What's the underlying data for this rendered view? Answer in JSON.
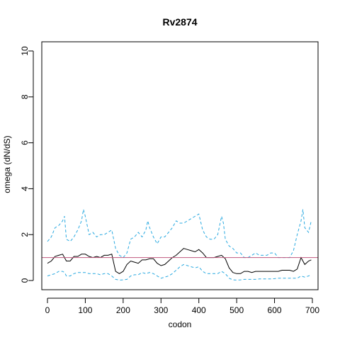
{
  "chart_data": {
    "type": "line",
    "title": "Rv2874",
    "xlabel": "codon",
    "ylabel": "omega (dN/dS)",
    "xlim": [
      -15,
      715
    ],
    "ylim": [
      -0.4,
      10.4
    ],
    "xticks": [
      0,
      100,
      200,
      300,
      400,
      500,
      600,
      700
    ],
    "yticks": [
      0,
      2,
      4,
      6,
      8,
      10
    ],
    "grid": false,
    "legend": "none",
    "reference_line": {
      "y": 1,
      "color": "#c0587e"
    },
    "series": [
      {
        "role": "upper",
        "color": "#29a9e0",
        "dash": "dashed",
        "x": [
          0,
          10,
          20,
          30,
          40,
          45,
          50,
          60,
          70,
          80,
          90,
          95,
          100,
          110,
          120,
          130,
          140,
          150,
          160,
          170,
          180,
          190,
          200,
          210,
          220,
          230,
          240,
          250,
          260,
          265,
          270,
          280,
          290,
          300,
          310,
          320,
          330,
          340,
          350,
          360,
          370,
          380,
          390,
          400,
          410,
          420,
          430,
          440,
          450,
          460,
          465,
          470,
          480,
          490,
          500,
          510,
          520,
          530,
          540,
          550,
          560,
          570,
          580,
          590,
          600,
          610,
          620,
          630,
          640,
          650,
          660,
          670,
          675,
          680,
          690,
          697
        ],
        "values": [
          1.7,
          1.9,
          2.3,
          2.4,
          2.6,
          2.8,
          1.8,
          1.7,
          1.9,
          2.2,
          2.6,
          3.1,
          2.8,
          2.0,
          2.1,
          1.9,
          2.0,
          2.0,
          2.1,
          2.2,
          1.4,
          1.1,
          1.0,
          1.2,
          1.8,
          1.9,
          2.1,
          1.9,
          2.2,
          2.6,
          2.3,
          1.9,
          1.6,
          1.9,
          1.9,
          2.1,
          2.3,
          2.6,
          2.5,
          2.5,
          2.6,
          2.7,
          2.8,
          2.9,
          2.2,
          1.9,
          1.8,
          1.8,
          2.0,
          2.8,
          2.5,
          1.8,
          1.5,
          1.4,
          1.2,
          1.2,
          1.0,
          1.0,
          1.1,
          1.2,
          1.1,
          1.1,
          1.1,
          1.2,
          1.2,
          1.0,
          1.0,
          1.0,
          1.0,
          1.3,
          2.0,
          2.6,
          3.1,
          2.3,
          2.1,
          2.6
        ]
      },
      {
        "role": "estimate",
        "color": "#000000",
        "dash": "solid",
        "x": [
          0,
          10,
          20,
          30,
          40,
          50,
          60,
          70,
          80,
          90,
          100,
          110,
          120,
          130,
          140,
          150,
          160,
          170,
          180,
          190,
          200,
          210,
          220,
          230,
          240,
          250,
          260,
          270,
          280,
          290,
          300,
          310,
          320,
          330,
          340,
          350,
          360,
          370,
          380,
          390,
          400,
          410,
          420,
          430,
          440,
          450,
          460,
          470,
          480,
          490,
          500,
          510,
          520,
          530,
          540,
          550,
          560,
          570,
          580,
          590,
          600,
          610,
          620,
          630,
          640,
          650,
          660,
          670,
          680,
          690,
          697
        ],
        "values": [
          0.75,
          0.85,
          1.05,
          1.1,
          1.15,
          0.85,
          0.85,
          1.05,
          1.05,
          1.15,
          1.15,
          1.05,
          1.0,
          1.05,
          1.0,
          1.1,
          1.1,
          1.15,
          0.4,
          0.3,
          0.4,
          0.7,
          0.85,
          0.8,
          0.75,
          0.9,
          0.9,
          0.95,
          0.95,
          0.75,
          0.65,
          0.7,
          0.85,
          1.0,
          1.1,
          1.25,
          1.4,
          1.35,
          1.3,
          1.25,
          1.35,
          1.2,
          1.0,
          1.0,
          1.0,
          1.05,
          1.1,
          0.95,
          0.55,
          0.35,
          0.3,
          0.3,
          0.4,
          0.4,
          0.35,
          0.4,
          0.4,
          0.4,
          0.4,
          0.4,
          0.4,
          0.4,
          0.45,
          0.45,
          0.45,
          0.4,
          0.5,
          1.0,
          0.7,
          0.85,
          0.9
        ]
      },
      {
        "role": "lower",
        "color": "#29a9e0",
        "dash": "dashed",
        "x": [
          0,
          10,
          20,
          30,
          40,
          45,
          50,
          60,
          70,
          80,
          90,
          100,
          110,
          120,
          130,
          140,
          150,
          160,
          170,
          180,
          190,
          200,
          210,
          220,
          230,
          240,
          250,
          260,
          270,
          280,
          290,
          300,
          310,
          320,
          330,
          340,
          350,
          360,
          370,
          380,
          390,
          400,
          410,
          420,
          430,
          440,
          450,
          460,
          470,
          480,
          490,
          500,
          510,
          520,
          530,
          540,
          550,
          560,
          570,
          580,
          590,
          600,
          610,
          620,
          630,
          640,
          650,
          660,
          670,
          680,
          690,
          697
        ],
        "values": [
          0.2,
          0.25,
          0.3,
          0.4,
          0.4,
          0.35,
          0.2,
          0.2,
          0.3,
          0.35,
          0.35,
          0.35,
          0.3,
          0.3,
          0.3,
          0.25,
          0.3,
          0.3,
          0.2,
          0.05,
          0.02,
          0.03,
          0.05,
          0.2,
          0.25,
          0.25,
          0.35,
          0.3,
          0.35,
          0.3,
          0.2,
          0.1,
          0.15,
          0.2,
          0.3,
          0.45,
          0.6,
          0.7,
          0.65,
          0.6,
          0.55,
          0.6,
          0.4,
          0.3,
          0.3,
          0.3,
          0.3,
          0.4,
          0.3,
          0.1,
          0.03,
          0.02,
          0.03,
          0.05,
          0.05,
          0.05,
          0.05,
          0.07,
          0.07,
          0.07,
          0.07,
          0.08,
          0.1,
          0.1,
          0.1,
          0.1,
          0.1,
          0.1,
          0.2,
          0.15,
          0.2,
          0.25
        ]
      }
    ]
  }
}
